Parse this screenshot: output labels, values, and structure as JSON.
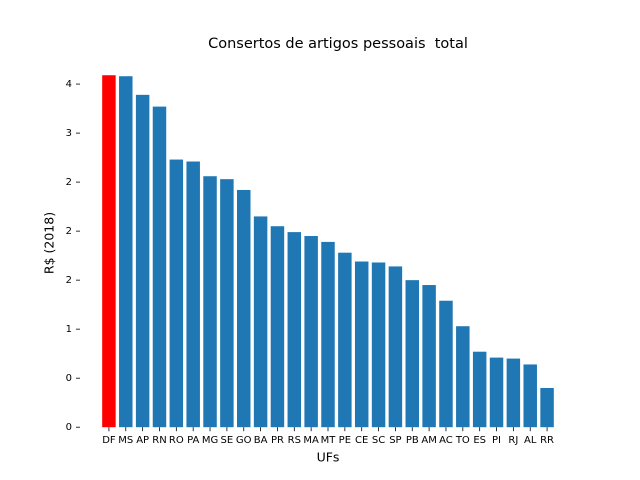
{
  "chart_data": {
    "type": "bar",
    "title": "Consertos de artigos pessoais  total",
    "x_label": "UFs",
    "y_label": "R$ (2018)",
    "categories": [
      "DF",
      "MS",
      "AP",
      "RN",
      "RO",
      "PA",
      "MG",
      "SE",
      "GO",
      "BA",
      "PR",
      "RS",
      "MA",
      "MT",
      "PE",
      "CE",
      "SC",
      "SP",
      "PB",
      "AM",
      "AC",
      "TO",
      "ES",
      "PI",
      "RJ",
      "AL",
      "RR"
    ],
    "values": [
      3.59,
      3.58,
      3.39,
      3.27,
      2.73,
      2.71,
      2.56,
      2.53,
      2.42,
      2.15,
      2.05,
      1.99,
      1.95,
      1.89,
      1.78,
      1.69,
      1.68,
      1.64,
      1.5,
      1.45,
      1.29,
      1.03,
      0.77,
      0.71,
      0.7,
      0.64,
      0.4
    ],
    "colors": [
      "#ff0000",
      "#1f77b4",
      "#1f77b4",
      "#1f77b4",
      "#1f77b4",
      "#1f77b4",
      "#1f77b4",
      "#1f77b4",
      "#1f77b4",
      "#1f77b4",
      "#1f77b4",
      "#1f77b4",
      "#1f77b4",
      "#1f77b4",
      "#1f77b4",
      "#1f77b4",
      "#1f77b4",
      "#1f77b4",
      "#1f77b4",
      "#1f77b4",
      "#1f77b4",
      "#1f77b4",
      "#1f77b4",
      "#1f77b4",
      "#1f77b4",
      "#1f77b4",
      "#1f77b4"
    ],
    "ylim": [
      0,
      3.77
    ],
    "yticks": [
      0,
      {
        "value": 0.5,
        "label": "0"
      },
      1,
      {
        "value": 1.5,
        "label": "2"
      },
      2,
      {
        "value": 2.5,
        "label": "2"
      },
      3,
      {
        "value": 3.5,
        "label": "4"
      }
    ],
    "grid": false
  }
}
